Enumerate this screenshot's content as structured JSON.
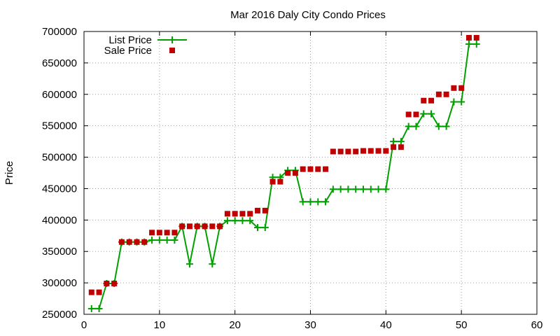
{
  "chart_data": {
    "type": "line",
    "title": "Mar 2016 Daly City Condo Prices",
    "xlabel": "",
    "ylabel": "Price",
    "xlim": [
      0,
      60
    ],
    "ylim": [
      250000,
      700000
    ],
    "x_ticks": [
      0,
      10,
      20,
      30,
      40,
      50,
      60
    ],
    "y_ticks": [
      250000,
      300000,
      350000,
      400000,
      450000,
      500000,
      550000,
      600000,
      650000,
      700000
    ],
    "grid": true,
    "legend_position": "top-left",
    "series": [
      {
        "name": "List Price",
        "style": "line-with-plus-markers",
        "color": "#00a000",
        "x": [
          1,
          2,
          3,
          4,
          5,
          6,
          7,
          8,
          9,
          10,
          11,
          12,
          13,
          14,
          15,
          16,
          17,
          18,
          19,
          20,
          21,
          22,
          23,
          24,
          25,
          26,
          27,
          28,
          29,
          30,
          31,
          32,
          33,
          34,
          35,
          36,
          37,
          38,
          39,
          40,
          41,
          42,
          43,
          44,
          45,
          46,
          47,
          48,
          49,
          50,
          51,
          52
        ],
        "y": [
          259000,
          259000,
          299000,
          299000,
          365000,
          365000,
          365000,
          365000,
          368000,
          368000,
          368000,
          368000,
          390000,
          330000,
          390000,
          390000,
          330000,
          390000,
          399000,
          399000,
          399000,
          399000,
          388000,
          388000,
          468000,
          468000,
          479000,
          479000,
          429000,
          429000,
          429000,
          429000,
          449000,
          449000,
          449000,
          449000,
          449000,
          449000,
          449000,
          449000,
          525000,
          525000,
          549000,
          549000,
          569000,
          569000,
          549000,
          549000,
          588000,
          588000,
          680000,
          680000
        ]
      },
      {
        "name": "Sale Price",
        "style": "square-markers",
        "color": "#c00000",
        "x": [
          1,
          2,
          3,
          4,
          5,
          6,
          7,
          8,
          9,
          10,
          11,
          12,
          13,
          14,
          15,
          16,
          17,
          18,
          19,
          20,
          21,
          22,
          23,
          24,
          25,
          26,
          27,
          28,
          29,
          30,
          31,
          32,
          33,
          34,
          35,
          36,
          37,
          38,
          39,
          40,
          41,
          42,
          43,
          44,
          45,
          46,
          47,
          48,
          49,
          50,
          51,
          52
        ],
        "y": [
          285000,
          285000,
          299000,
          299000,
          365000,
          365000,
          365000,
          365000,
          380000,
          380000,
          380000,
          380000,
          390000,
          390000,
          390000,
          390000,
          390000,
          390000,
          410000,
          410000,
          410000,
          410000,
          415000,
          415000,
          461000,
          461000,
          475000,
          475000,
          481000,
          481000,
          481000,
          481000,
          509000,
          509000,
          509000,
          509000,
          510000,
          510000,
          510000,
          510000,
          516000,
          516000,
          568000,
          568000,
          590000,
          590000,
          600000,
          600000,
          610000,
          610000,
          690000,
          690000
        ]
      }
    ]
  }
}
